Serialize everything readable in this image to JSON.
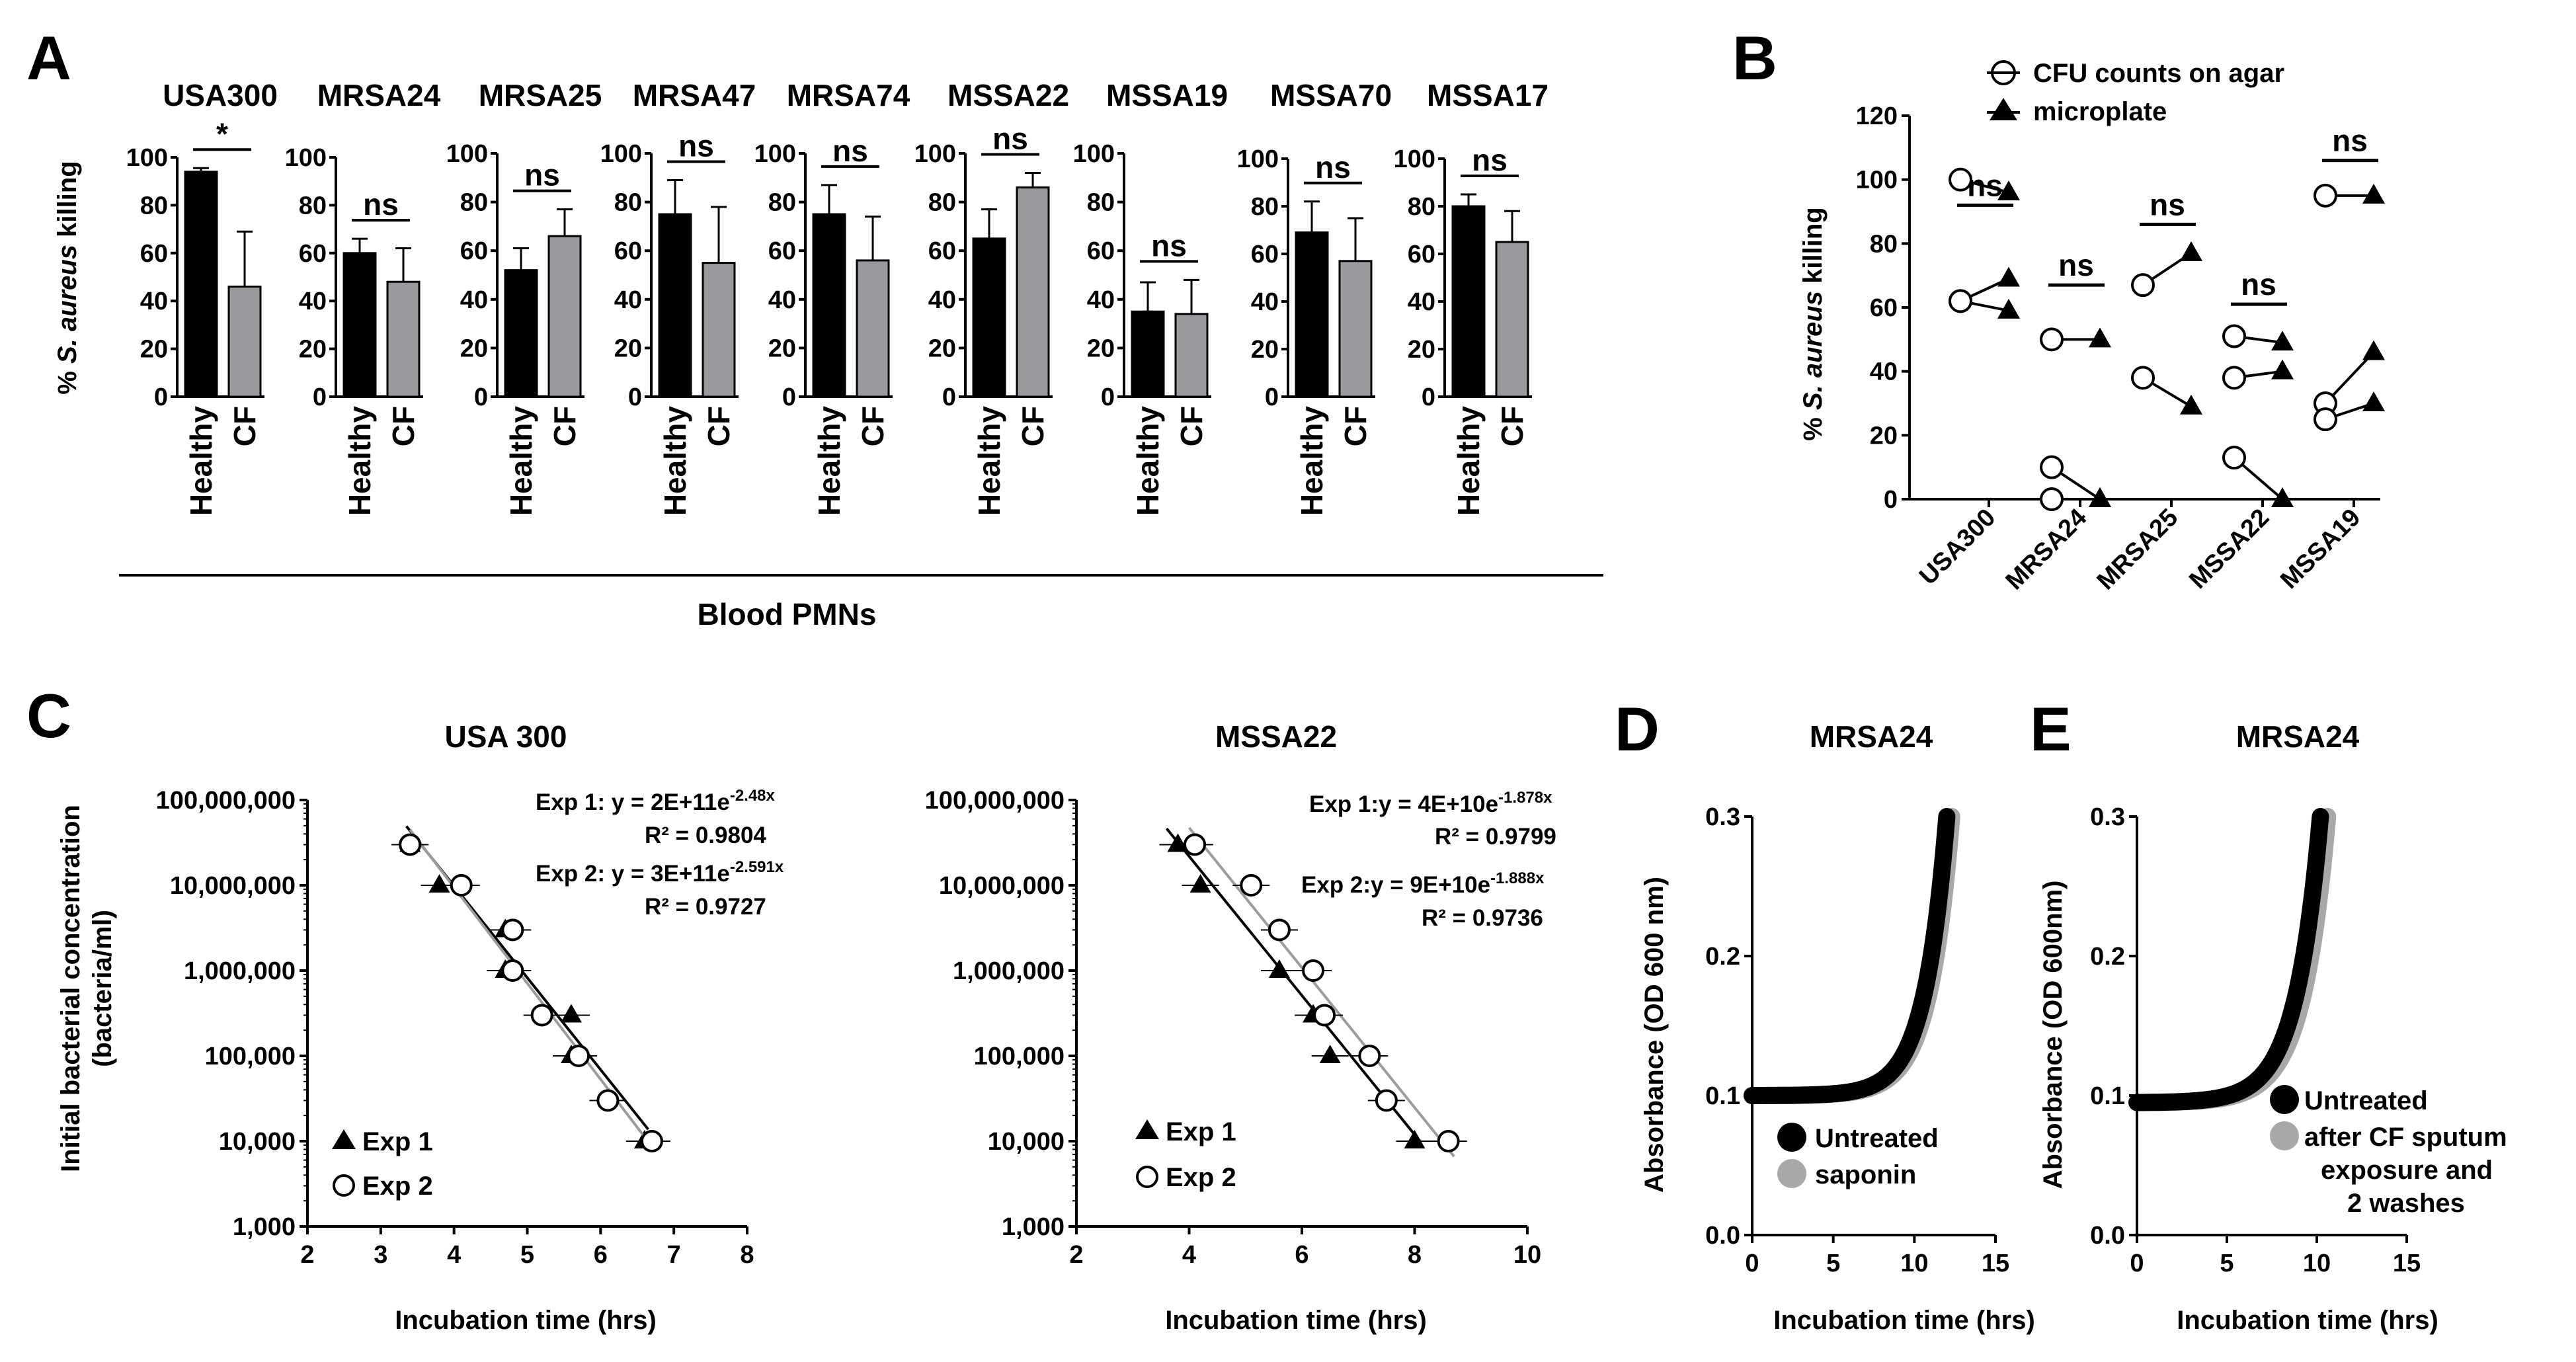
{
  "panels": {
    "a": "A",
    "b": "B",
    "c": "C",
    "d": "D",
    "e": "E"
  },
  "chart_data": [
    {
      "type": "bar",
      "panel": "A",
      "ylabel_pre": "% ",
      "ylabel_italic": "S. aureus",
      "ylabel_post": " killing",
      "xlabel": "Blood PMNs",
      "categories": [
        "Healthy",
        "CF"
      ],
      "colors": [
        "#000000",
        "#9a9a9e"
      ],
      "subplots": [
        {
          "title": "USA300",
          "ylim": [
            0,
            100
          ],
          "ticks": [
            0,
            20,
            40,
            60,
            80,
            100
          ],
          "values": [
            94,
            46
          ],
          "errors": [
            1.5,
            23
          ],
          "sig": "*"
        },
        {
          "title": "MRSA24",
          "ylim": [
            0,
            100
          ],
          "ticks": [
            0,
            20,
            40,
            60,
            80,
            100
          ],
          "values": [
            60,
            48
          ],
          "errors": [
            6,
            14
          ],
          "sig": "ns"
        },
        {
          "title": "MRSA25",
          "ylim": [
            0,
            100
          ],
          "ticks": [
            0,
            20,
            40,
            60,
            80,
            100
          ],
          "values": [
            52,
            66
          ],
          "errors": [
            9,
            11
          ],
          "sig": "ns"
        },
        {
          "title": "MRSA47",
          "ylim": [
            0,
            100
          ],
          "ticks": [
            0,
            20,
            40,
            60,
            80,
            100
          ],
          "values": [
            75,
            55
          ],
          "errors": [
            14,
            23
          ],
          "sig": "ns"
        },
        {
          "title": "MRSA74",
          "ylim": [
            0,
            100
          ],
          "ticks": [
            0,
            20,
            40,
            60,
            80,
            100
          ],
          "values": [
            75,
            56
          ],
          "errors": [
            12,
            18
          ],
          "sig": "ns"
        },
        {
          "title": "MSSA22",
          "ylim": [
            0,
            100
          ],
          "ticks": [
            0,
            20,
            40,
            60,
            80,
            100
          ],
          "values": [
            65,
            86
          ],
          "errors": [
            12,
            6
          ],
          "sig": "ns"
        },
        {
          "title": "MSSA19",
          "ylim": [
            0,
            100
          ],
          "ticks": [
            0,
            20,
            40,
            60,
            80,
            100
          ],
          "values": [
            35,
            34
          ],
          "errors": [
            12,
            14
          ],
          "sig": "ns"
        },
        {
          "title": "MSSA70",
          "ylim": [
            0,
            100
          ],
          "ticks": [
            0,
            20,
            40,
            60,
            80,
            100
          ],
          "values": [
            69,
            57
          ],
          "errors": [
            13,
            18
          ],
          "sig": "ns"
        },
        {
          "title": "MSSA17",
          "ylim": [
            0,
            100
          ],
          "ticks": [
            0,
            20,
            40,
            60,
            80,
            100
          ],
          "values": [
            80,
            65
          ],
          "errors": [
            5,
            13
          ],
          "sig": "ns"
        }
      ]
    },
    {
      "type": "scatter",
      "panel": "B",
      "ylabel_pre": "% ",
      "ylabel_italic": "S. aureus",
      "ylabel_post": " killing",
      "ylim": [
        0,
        120
      ],
      "yticks": [
        0,
        20,
        40,
        60,
        80,
        100,
        120
      ],
      "categories": [
        "USA300",
        "MRSA24",
        "MRSA25",
        "MSSA22",
        "MSSA19"
      ],
      "legend": [
        "CFU counts on agar",
        "microplate"
      ],
      "sig": [
        "ns",
        "ns",
        "ns",
        "ns",
        "ns"
      ],
      "sig_level": [
        92,
        67,
        86,
        61,
        106
      ],
      "pairs": [
        [
          [
            100,
            96
          ],
          [
            62,
            69
          ],
          [
            62,
            59
          ]
        ],
        [
          [
            50,
            50
          ],
          [
            10,
            0
          ],
          [
            0,
            0
          ]
        ],
        [
          [
            67,
            77
          ],
          [
            38,
            29
          ]
        ],
        [
          [
            51,
            49
          ],
          [
            38,
            40
          ],
          [
            13,
            0
          ]
        ],
        [
          [
            95,
            95
          ],
          [
            30,
            46
          ],
          [
            25,
            30
          ]
        ]
      ]
    },
    {
      "type": "scatter",
      "panel": "C",
      "title": "USA 300",
      "xlabel": "Incubation time (hrs)",
      "ylabel_line1": "Initial bacterial concentration",
      "ylabel_line2": "(bacteria/ml)",
      "xlim": [
        2,
        8
      ],
      "xticks": [
        2,
        3,
        4,
        5,
        6,
        7,
        8
      ],
      "ylim_log": [
        1000,
        100000000
      ],
      "yticks": [
        "1,000",
        "10,000",
        "100,000",
        "1,000,000",
        "10,000,000",
        "100,000,000"
      ],
      "series": [
        {
          "name": "Exp 1",
          "marker": "triangle",
          "points": [
            [
              3.4,
              30000000
            ],
            [
              3.8,
              10000000
            ],
            [
              4.7,
              3000000
            ],
            [
              4.7,
              1000000
            ],
            [
              5.6,
              300000
            ],
            [
              5.6,
              100000
            ],
            [
              6.6,
              10000
            ]
          ],
          "fit": {
            "a": "2E+11",
            "b": "-2.48",
            "r2": "0.9804",
            "x0": 3.35,
            "x1": 6.65
          }
        },
        {
          "name": "Exp 2",
          "marker": "circle",
          "points": [
            [
              3.4,
              30000000
            ],
            [
              4.1,
              10000000
            ],
            [
              4.8,
              3000000
            ],
            [
              4.8,
              1000000
            ],
            [
              5.2,
              300000
            ],
            [
              5.7,
              100000
            ],
            [
              6.1,
              30000
            ],
            [
              6.7,
              10000
            ]
          ],
          "fit": {
            "a": "3E+11",
            "b": "-2.591",
            "r2": "0.9727",
            "x0": 3.4,
            "x1": 6.75
          }
        }
      ],
      "eq1": {
        "lead": "Exp 1: y = 2E+11e",
        "sup": "-2.48x",
        "r2": "R² = 0.9804"
      },
      "eq2": {
        "lead": "Exp 2: y = 3E+11e",
        "sup": "-2.591x",
        "r2": "R² = 0.9727"
      }
    },
    {
      "type": "scatter",
      "panel": "C",
      "title": "MSSA22",
      "xlabel": "Incubation time (hrs)",
      "xlim": [
        2,
        10
      ],
      "xticks": [
        2,
        4,
        6,
        8,
        10
      ],
      "ylim_log": [
        1000,
        100000000
      ],
      "yticks": [
        "1,000",
        "10,000",
        "100,000",
        "1,000,000",
        "10,000,000",
        "100,000,000"
      ],
      "series": [
        {
          "name": "Exp 1",
          "marker": "triangle",
          "points": [
            [
              3.8,
              30000000
            ],
            [
              4.2,
              10000000
            ],
            [
              5.6,
              1000000
            ],
            [
              6.2,
              300000
            ],
            [
              6.5,
              100000
            ],
            [
              8.0,
              10000
            ]
          ],
          "fit": {
            "a": "4E+10",
            "b": "-1.878",
            "r2": "0.9799",
            "x0": 3.6,
            "x1": 8.1
          }
        },
        {
          "name": "Exp 2",
          "marker": "circle",
          "points": [
            [
              4.1,
              30000000
            ],
            [
              5.1,
              10000000
            ],
            [
              5.6,
              3000000
            ],
            [
              6.2,
              1000000
            ],
            [
              6.4,
              300000
            ],
            [
              7.2,
              100000
            ],
            [
              7.5,
              30000
            ],
            [
              8.6,
              10000
            ]
          ],
          "fit": {
            "a": "9E+10",
            "b": "-1.888",
            "r2": "0.9736",
            "x0": 4.0,
            "x1": 8.7
          }
        }
      ],
      "eq1": {
        "lead": "Exp 1:y = 4E+10e",
        "sup": "-1.878x",
        "r2": "R² = 0.9799"
      },
      "eq2": {
        "lead": "Exp 2:y = 9E+10e",
        "sup": "-1.888x",
        "r2": "R² = 0.9736"
      }
    },
    {
      "type": "line",
      "panel": "D",
      "title": "MRSA24",
      "xlabel": "Incubation time (hrs)",
      "ylabel": "Absorbance (OD 600 nm)",
      "xlim": [
        0,
        15
      ],
      "xticks": [
        0,
        5,
        10,
        15
      ],
      "ylim": [
        0,
        0.3
      ],
      "yticks": [
        "0.0",
        "0.1",
        "0.2",
        "0.3"
      ],
      "series": [
        {
          "name": "Untreated",
          "color": "#000000",
          "baseline": 0.1,
          "x_end": 12.0
        },
        {
          "name": "saponin",
          "color": "#a8a8a8",
          "baseline": 0.1,
          "x_end": 12.3
        }
      ]
    },
    {
      "type": "line",
      "panel": "E",
      "title": "MRSA24",
      "xlabel": "Incubation time (hrs)",
      "ylabel": "Absorbance (OD 600nm)",
      "xlim": [
        0,
        15
      ],
      "xticks": [
        0,
        5,
        10,
        15
      ],
      "ylim": [
        0,
        0.3
      ],
      "yticks": [
        "0.0",
        "0.1",
        "0.2",
        "0.3"
      ],
      "series": [
        {
          "name": "Untreated",
          "color": "#000000",
          "baseline": 0.095,
          "x_end": 10.2
        },
        {
          "name": "after CF sputum exposure and 2 washes",
          "color": "#a8a8a8",
          "baseline": 0.095,
          "x_end": 10.6
        }
      ],
      "legend_lines": [
        "Untreated",
        "after CF sputum",
        "exposure and",
        "2 washes"
      ]
    }
  ]
}
